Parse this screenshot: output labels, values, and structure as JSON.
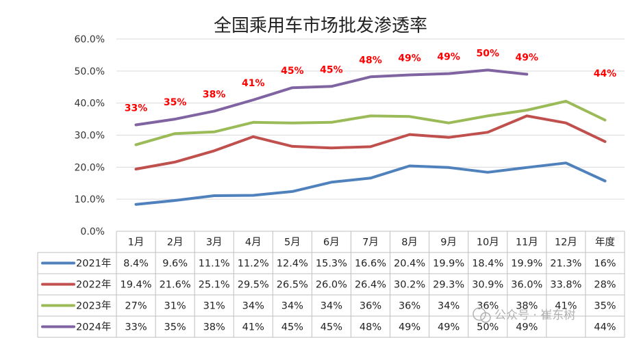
{
  "chart_data": {
    "type": "line",
    "title": "全国乘用车市场批发渗透率",
    "categories": [
      "1月",
      "2月",
      "3月",
      "4月",
      "5月",
      "6月",
      "7月",
      "8月",
      "9月",
      "10月",
      "11月",
      "12月",
      "年度"
    ],
    "y_ticks": [
      "0.0%",
      "10.0%",
      "20.0%",
      "30.0%",
      "40.0%",
      "50.0%",
      "60.0%"
    ],
    "ylim": [
      0,
      60
    ],
    "grid": true,
    "legend_position": "left-table",
    "series": [
      {
        "name": "2021年",
        "color": "#4f81bd",
        "values": [
          8.4,
          9.6,
          11.1,
          11.2,
          12.4,
          15.3,
          16.6,
          20.4,
          19.9,
          18.4,
          19.9,
          21.3,
          15.7
        ],
        "table": [
          "8.4%",
          "9.6%",
          "11.1%",
          "11.2%",
          "12.4%",
          "15.3%",
          "16.6%",
          "20.4%",
          "19.9%",
          "18.4%",
          "19.9%",
          "21.3%",
          "16%"
        ]
      },
      {
        "name": "2022年",
        "color": "#c0504d",
        "values": [
          19.4,
          21.6,
          25.1,
          29.5,
          26.5,
          26.0,
          26.4,
          30.2,
          29.3,
          30.9,
          36.0,
          33.8,
          28.0
        ],
        "table": [
          "19.4%",
          "21.6%",
          "25.1%",
          "29.5%",
          "26.5%",
          "26.0%",
          "26.4%",
          "30.2%",
          "29.3%",
          "30.9%",
          "36.0%",
          "33.8%",
          "28%"
        ]
      },
      {
        "name": "2023年",
        "color": "#9bbb59",
        "values": [
          27,
          30.5,
          31,
          34,
          33.8,
          34,
          36,
          35.8,
          33.8,
          36,
          37.8,
          40.6,
          34.7
        ],
        "table": [
          "27%",
          "31%",
          "31%",
          "34%",
          "34%",
          "34%",
          "36%",
          "36%",
          "34%",
          "36%",
          "38%",
          "41%",
          "35%"
        ]
      },
      {
        "name": "2024年",
        "color": "#8064a2",
        "values": [
          33.2,
          35,
          37.5,
          41,
          44.8,
          45.2,
          48.2,
          48.8,
          49.2,
          50.3,
          49,
          null,
          null
        ],
        "table": [
          "33%",
          "35%",
          "38%",
          "41%",
          "45%",
          "45%",
          "48%",
          "49%",
          "49%",
          "50%",
          "49%",
          "",
          "44%"
        ]
      }
    ],
    "annotations": [
      "33%",
      "35%",
      "38%",
      "41%",
      "45%",
      "45%",
      "48%",
      "49%",
      "49%",
      "50%",
      "49%",
      "",
      "44%"
    ]
  },
  "watermark": "公众号 · 崔东树"
}
